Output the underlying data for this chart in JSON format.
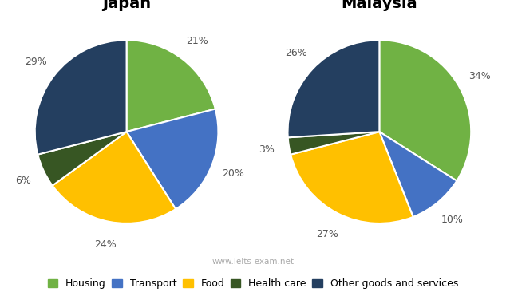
{
  "japan": {
    "title": "Japan",
    "values": [
      21,
      20,
      24,
      6,
      29
    ],
    "labels": [
      "21%",
      "20%",
      "24%",
      "6%",
      "29%"
    ],
    "startangle": 90
  },
  "malaysia": {
    "title": "Malaysia",
    "values": [
      34,
      10,
      27,
      3,
      26
    ],
    "labels": [
      "34%",
      "10%",
      "27%",
      "3%",
      "26%"
    ],
    "startangle": 90
  },
  "categories": [
    "Housing",
    "Transport",
    "Food",
    "Health care",
    "Other goods and services"
  ],
  "colors": [
    "#70b244",
    "#4472c4",
    "#ffc000",
    "#375623",
    "#243f60"
  ],
  "watermark": "www.ielts-exam.net",
  "title_fontsize": 14,
  "label_fontsize": 9,
  "legend_fontsize": 9,
  "label_color": "#555555",
  "watermark_color": "#aaaaaa"
}
